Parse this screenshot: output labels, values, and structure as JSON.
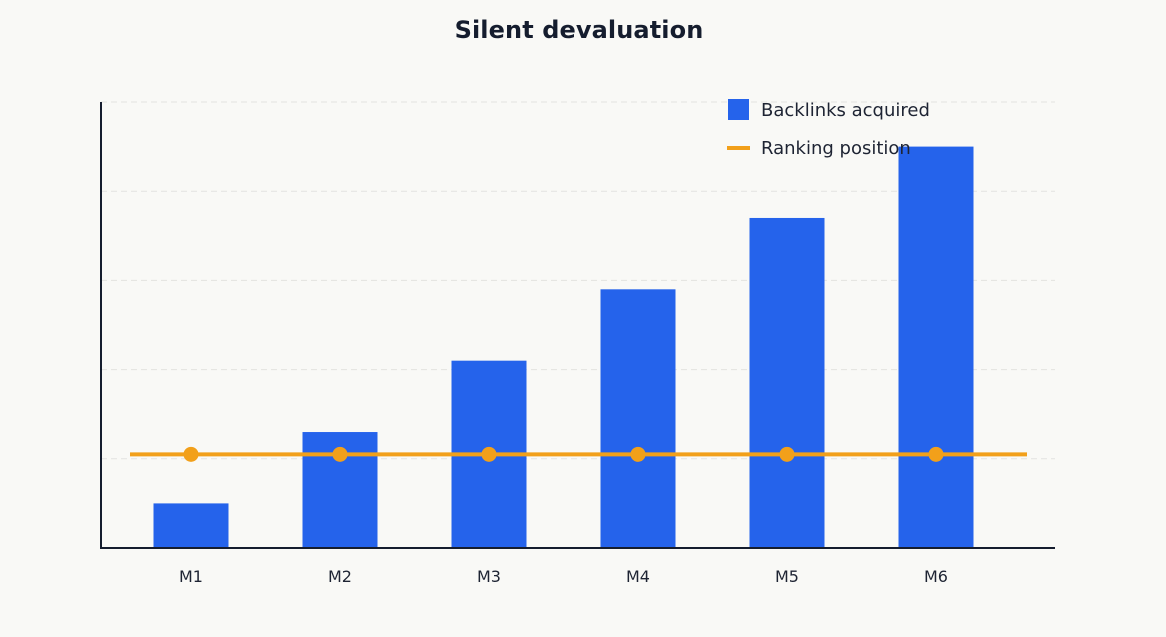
{
  "chart_data": {
    "type": "bar",
    "title": "Silent devaluation",
    "categories": [
      "M1",
      "M2",
      "M3",
      "M4",
      "M5",
      "M6"
    ],
    "series": [
      {
        "name": "Backlinks acquired",
        "type": "bar",
        "color": "#2563eb",
        "values": [
          10,
          26,
          42,
          58,
          74,
          90
        ]
      },
      {
        "name": "Ranking position",
        "type": "line",
        "color": "#f2a01a",
        "values": [
          21,
          21,
          21,
          21,
          21,
          21
        ]
      }
    ],
    "ylim": [
      0,
      100
    ],
    "grid": true,
    "legend": "top-right"
  }
}
